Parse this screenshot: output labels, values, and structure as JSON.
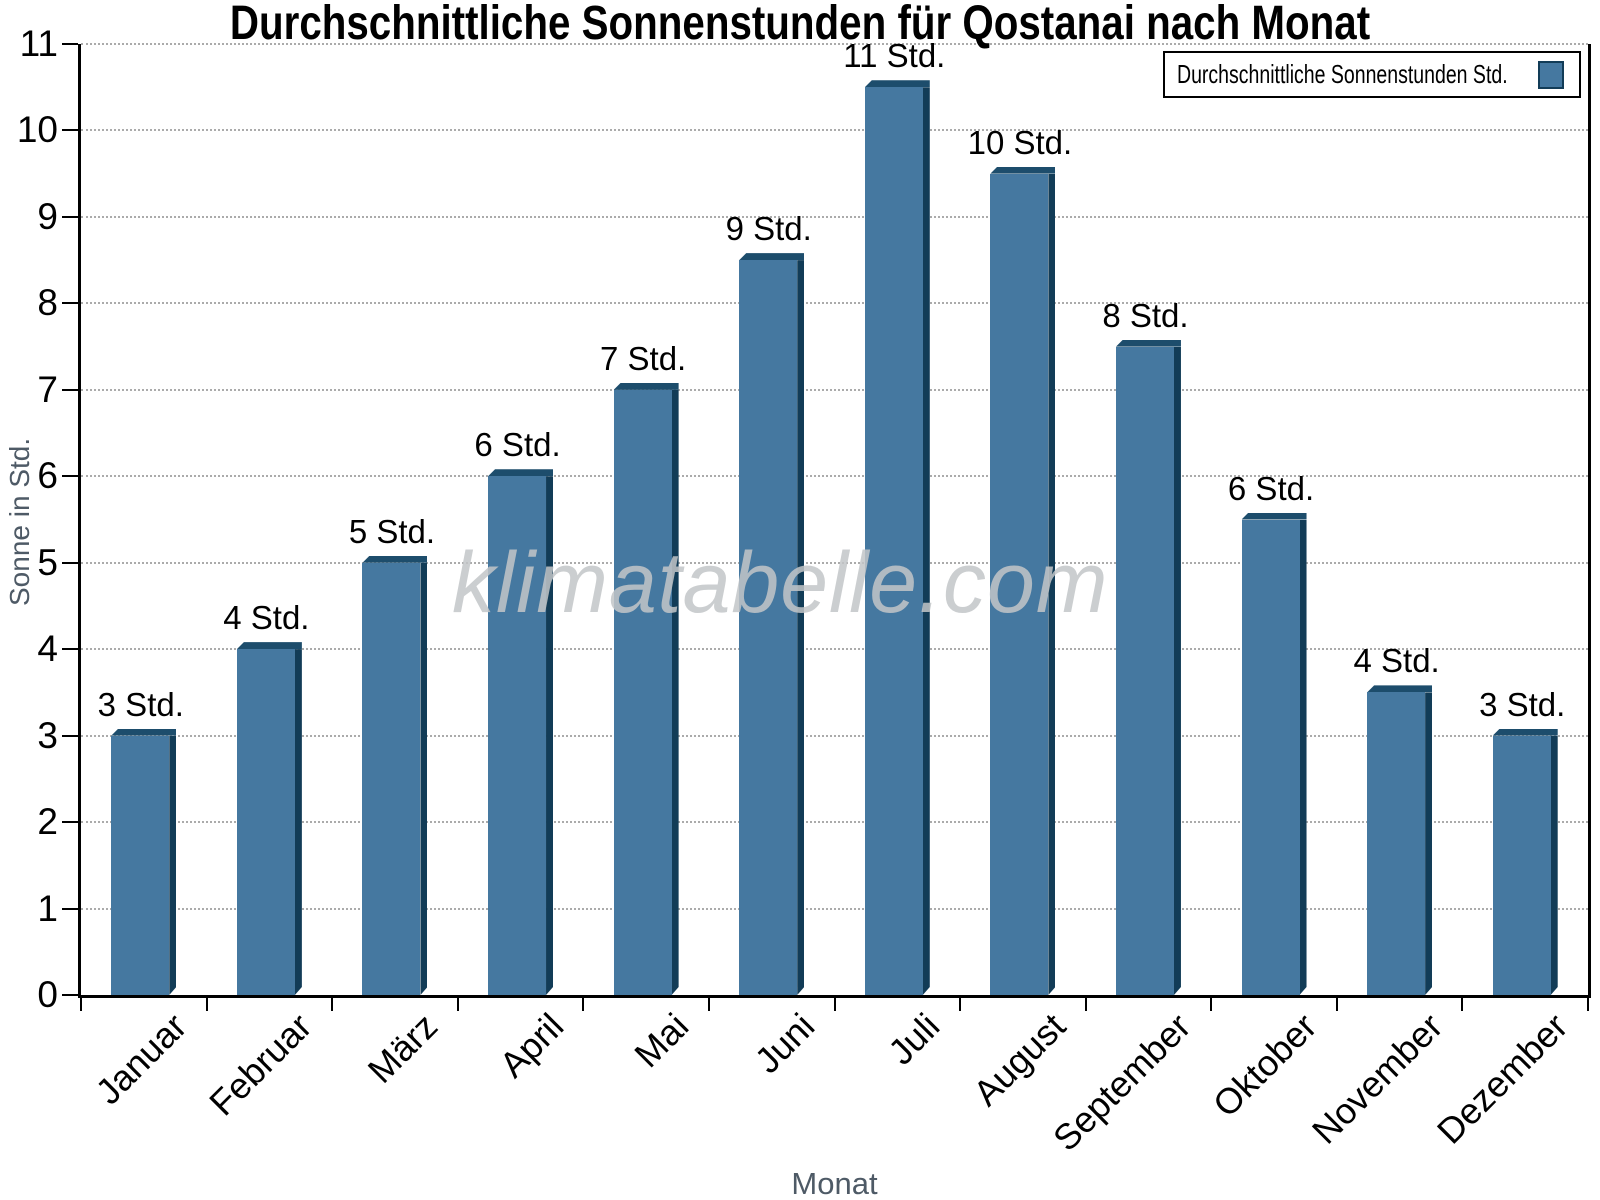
{
  "title": "Durchschnittliche Sonnenstunden für Qostanai nach Monat",
  "watermark": "klimatabelle.com",
  "legend": {
    "label": "Durchschnittliche Sonnenstunden Std."
  },
  "x_axis_title": "Monat",
  "y_axis_title": "Sonne in Std.",
  "chart_data": {
    "type": "bar",
    "title": "Durchschnittliche Sonnenstunden für Qostanai nach Monat",
    "series_name": "Durchschnittliche Sonnenstunden Std.",
    "categories": [
      "Januar",
      "Februar",
      "März",
      "April",
      "Mai",
      "Juni",
      "Juli",
      "August",
      "September",
      "Oktober",
      "November",
      "Dezember"
    ],
    "values": [
      3,
      4,
      5,
      6,
      7,
      8.5,
      10.5,
      9.5,
      7.5,
      5.5,
      3.5,
      3
    ],
    "bar_labels": [
      "3 Std.",
      "4 Std.",
      "5 Std.",
      "6 Std.",
      "7 Std.",
      "9 Std.",
      "11 Std.",
      "10 Std.",
      "8 Std.",
      "6 Std.",
      "4 Std.",
      "3 Std."
    ],
    "xlabel": "Monat",
    "ylabel": "Sonne in Std.",
    "ylim": [
      0,
      11
    ],
    "yticks": [
      0,
      1,
      2,
      3,
      4,
      5,
      6,
      7,
      8,
      9,
      10,
      11
    ],
    "grid": "horizontal-dotted",
    "legend_position": "top-right",
    "colors": {
      "bar_face": "#4578a0",
      "bar_top_shade": "#1d4d6c",
      "bar_side_shade": "#123c57",
      "axis_title": "#4e5a66",
      "gridline": "#ababab",
      "watermark": "#c3c6c8",
      "axis_line": "#000000",
      "label_text": "#000000"
    }
  }
}
